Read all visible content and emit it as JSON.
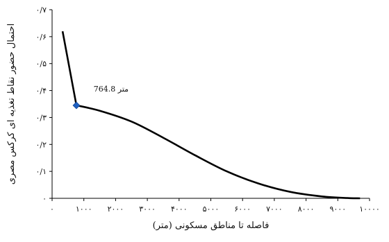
{
  "chart_data": {
    "type": "line",
    "xlabel": "فاصله تا مناطق مسکونی (متر)",
    "ylabel": "احتمال حضور نقاط تغذیه ای کرکس مصری",
    "xlim": [
      0,
      10000
    ],
    "ylim": [
      0,
      0.7
    ],
    "x_ticks": [
      0,
      1000,
      2000,
      3000,
      4000,
      5000,
      6000,
      7000,
      8000,
      9000,
      10000
    ],
    "x_tick_labels": [
      "۰",
      "۱۰۰۰",
      "۲۰۰۰",
      "۳۰۰۰",
      "۴۰۰۰",
      "۵۰۰۰",
      "۶۰۰۰",
      "۷۰۰۰",
      "۸۰۰۰",
      "۹۰۰۰",
      "۱۰۰۰۰"
    ],
    "y_ticks": [
      0,
      0.1,
      0.2,
      0.3,
      0.4,
      0.5,
      0.6,
      0.7
    ],
    "y_tick_labels": [
      "۰",
      "۰/۱",
      "۰/۲",
      "۰/۳",
      "۰/۴",
      "۰/۵",
      "۰/۶",
      "۰/۷"
    ],
    "grid": false,
    "series": [
      {
        "color": "#000000",
        "x": [
          330,
          764.8,
          1500,
          2500,
          3500,
          4500,
          5500,
          6500,
          7500,
          8500,
          9300,
          9700
        ],
        "y": [
          0.62,
          0.345,
          0.325,
          0.285,
          0.225,
          0.16,
          0.1,
          0.055,
          0.024,
          0.007,
          0.001,
          0.0
        ]
      }
    ],
    "marker": {
      "x": 764.8,
      "y": 0.345,
      "color": "#1f5fbf"
    },
    "annotation": {
      "text": "متر 764.8",
      "x": 764.8,
      "y": 0.345
    }
  }
}
